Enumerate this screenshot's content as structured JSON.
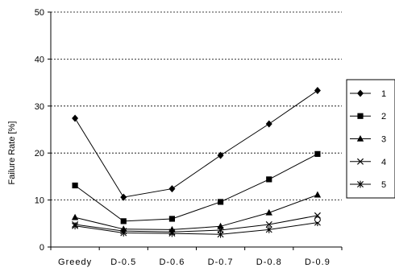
{
  "chart_data": {
    "type": "line",
    "title": "",
    "xlabel": "",
    "ylabel": "Failure Rate [%]",
    "categories": [
      "Greedy",
      "D-0.5",
      "D-0.6",
      "D-0.7",
      "D-0.8",
      "D-0.9"
    ],
    "ylim": [
      0,
      50
    ],
    "yticks": [
      0,
      10,
      20,
      30,
      40,
      50
    ],
    "grid": "horizontal dashed",
    "legend_position": "right",
    "series": [
      {
        "name": "1",
        "marker": "diamond",
        "values": [
          27.4,
          10.6,
          12.4,
          19.5,
          26.2,
          33.3
        ]
      },
      {
        "name": "2",
        "marker": "square",
        "values": [
          13.1,
          5.5,
          6.0,
          9.6,
          14.4,
          19.8
        ]
      },
      {
        "name": "3",
        "marker": "triangle",
        "values": [
          6.3,
          3.8,
          3.7,
          4.4,
          7.3,
          11.1
        ]
      },
      {
        "name": "4",
        "marker": "x",
        "values": [
          4.8,
          3.4,
          3.2,
          3.6,
          4.8,
          6.7
        ]
      },
      {
        "name": "5",
        "marker": "asterisk",
        "values": [
          4.5,
          3.0,
          2.9,
          2.7,
          3.7,
          5.2
        ]
      }
    ],
    "annotations": [
      {
        "marker": "circle",
        "category": "D-0.9",
        "value": 5.8
      }
    ],
    "colors": {
      "line": "#000000",
      "grid": "#000000",
      "background": "#ffffff"
    }
  }
}
